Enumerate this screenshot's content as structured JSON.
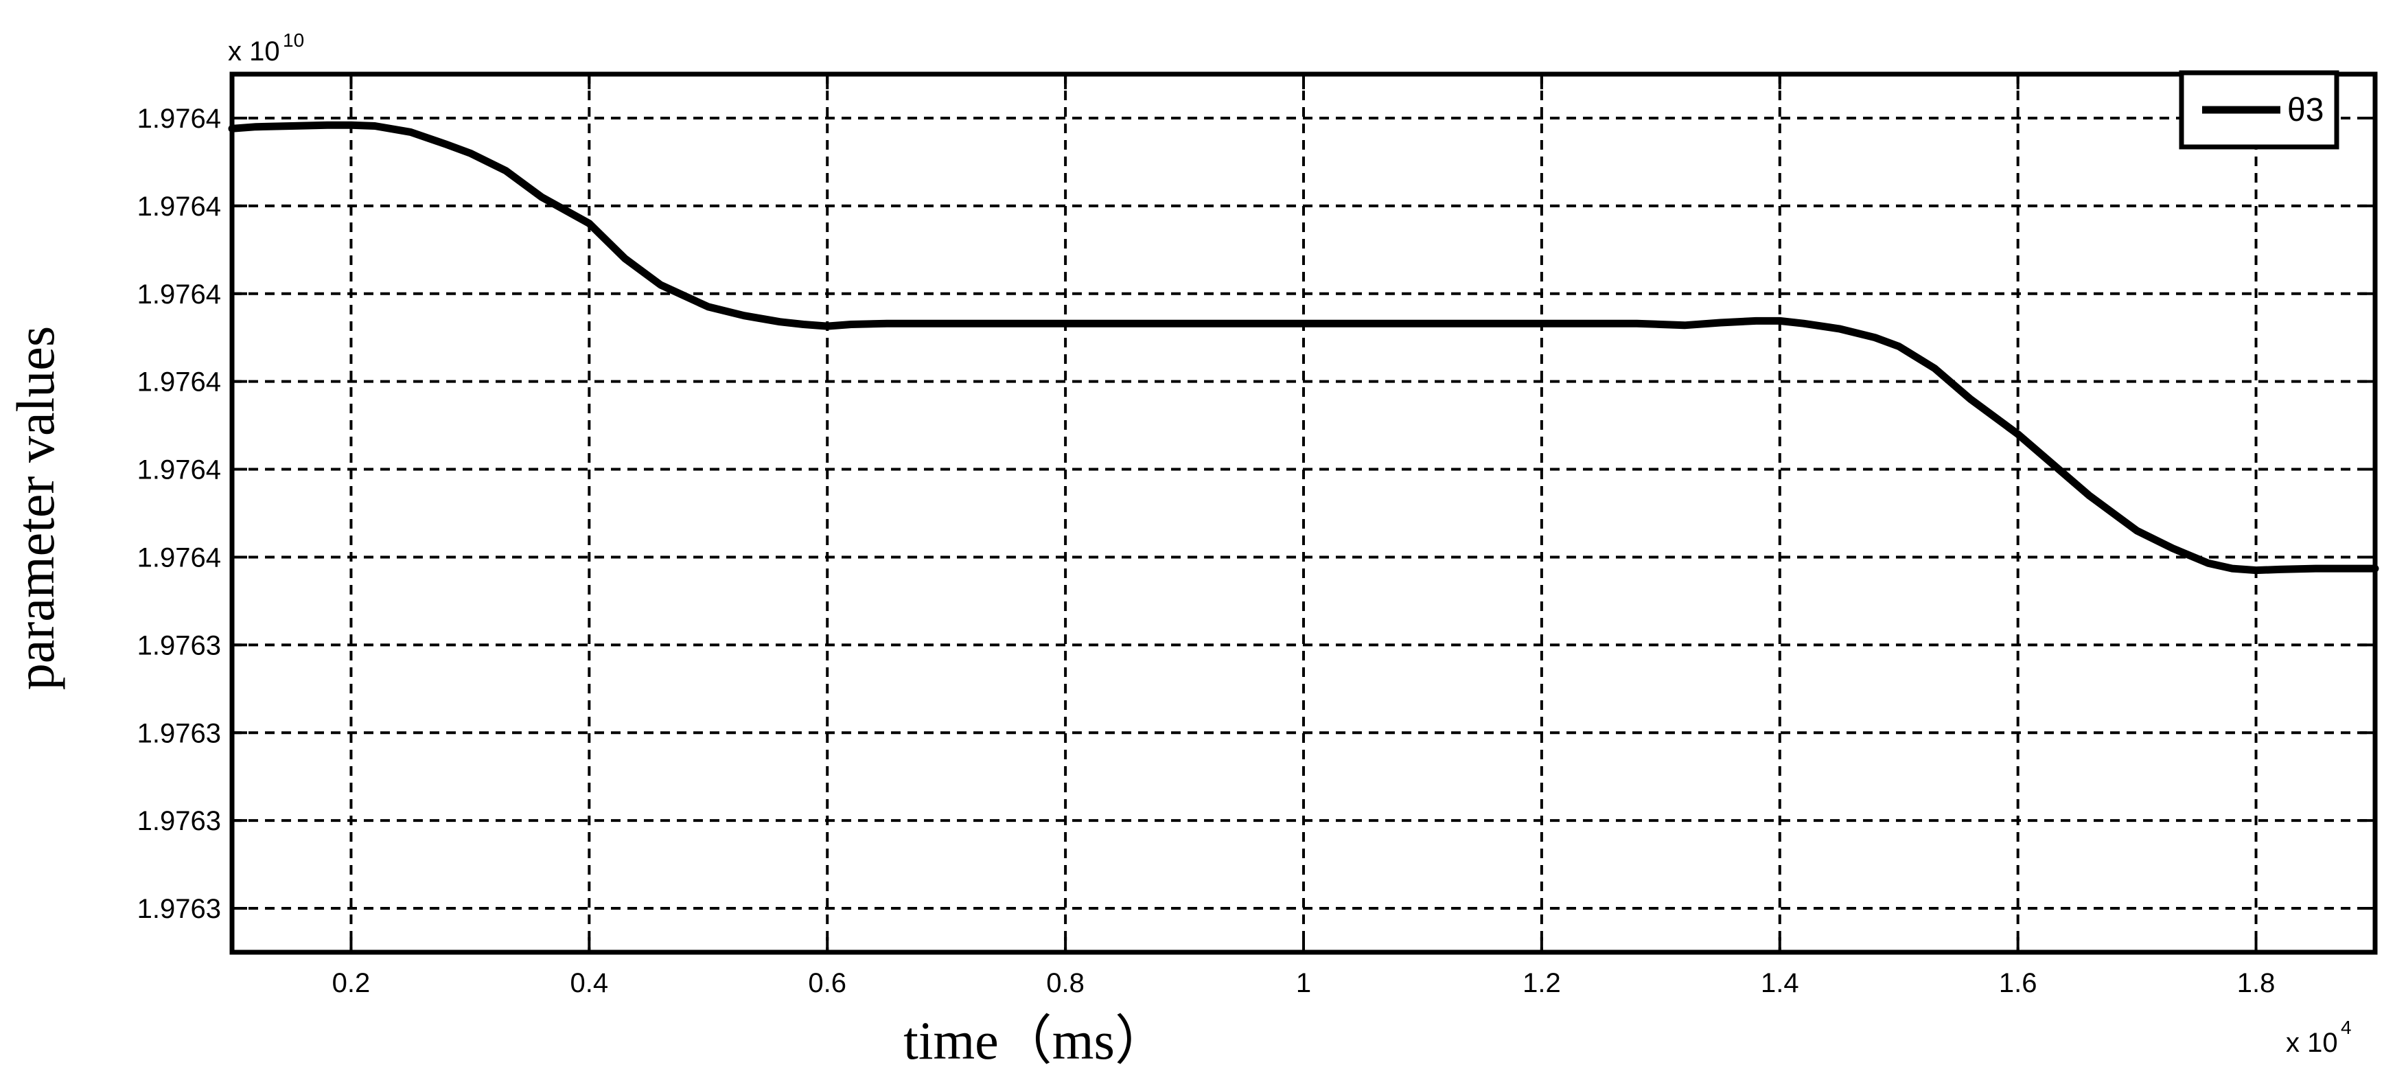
{
  "chart_data": {
    "type": "line",
    "title": "",
    "xlabel": "time（ms）",
    "ylabel": "parameter values",
    "x_exponent": {
      "base": "x 10",
      "power": "4"
    },
    "y_exponent": {
      "base": "x 10",
      "power": "10"
    },
    "xlim": [
      0.1,
      1.9
    ],
    "ylim": [
      1.97632,
      1.97642
    ],
    "x_ticks": [
      0.2,
      0.4,
      0.6,
      0.8,
      1.0,
      1.2,
      1.4,
      1.6,
      1.8
    ],
    "x_tick_labels": [
      "0.2",
      "0.4",
      "0.6",
      "0.8",
      "1",
      "1.2",
      "1.4",
      "1.6",
      "1.8"
    ],
    "y_ticks": [
      1.976325,
      1.976335,
      1.976345,
      1.976355,
      1.976365,
      1.976375,
      1.976385,
      1.976395,
      1.976405,
      1.976415
    ],
    "y_tick_labels": [
      "1.9763",
      "1.9763",
      "1.9763",
      "1.9763",
      "1.9764",
      "1.9764",
      "1.9764",
      "1.9764",
      "1.9764",
      "1.9764"
    ],
    "grid": true,
    "legend_position": "top-right",
    "series": [
      {
        "name": "θ3",
        "color": "#000000",
        "x": [
          0.1,
          0.12,
          0.15,
          0.18,
          0.2,
          0.22,
          0.25,
          0.28,
          0.3,
          0.33,
          0.36,
          0.4,
          0.43,
          0.46,
          0.5,
          0.53,
          0.56,
          0.58,
          0.6,
          0.62,
          0.65,
          0.7,
          0.8,
          0.9,
          1.0,
          1.1,
          1.2,
          1.28,
          1.3,
          1.32,
          1.35,
          1.38,
          1.4,
          1.42,
          1.45,
          1.48,
          1.5,
          1.53,
          1.56,
          1.6,
          1.63,
          1.66,
          1.7,
          1.73,
          1.76,
          1.78,
          1.8,
          1.82,
          1.85,
          1.88,
          1.9
        ],
        "values": [
          1.9764138,
          1.976414,
          1.9764141,
          1.9764142,
          1.9764142,
          1.9764141,
          1.9764134,
          1.976412,
          1.976411,
          1.976409,
          1.976406,
          1.976403,
          1.976399,
          1.976396,
          1.9763935,
          1.9763925,
          1.9763918,
          1.9763915,
          1.9763913,
          1.9763915,
          1.9763916,
          1.9763916,
          1.9763916,
          1.9763916,
          1.9763916,
          1.9763916,
          1.9763916,
          1.9763916,
          1.9763915,
          1.9763914,
          1.9763917,
          1.9763919,
          1.9763919,
          1.9763916,
          1.976391,
          1.97639,
          1.976389,
          1.9763865,
          1.976383,
          1.976379,
          1.9763755,
          1.976372,
          1.976368,
          1.976366,
          1.9763643,
          1.9763637,
          1.9763635,
          1.9763636,
          1.9763637,
          1.9763637,
          1.9763637
        ]
      }
    ]
  }
}
